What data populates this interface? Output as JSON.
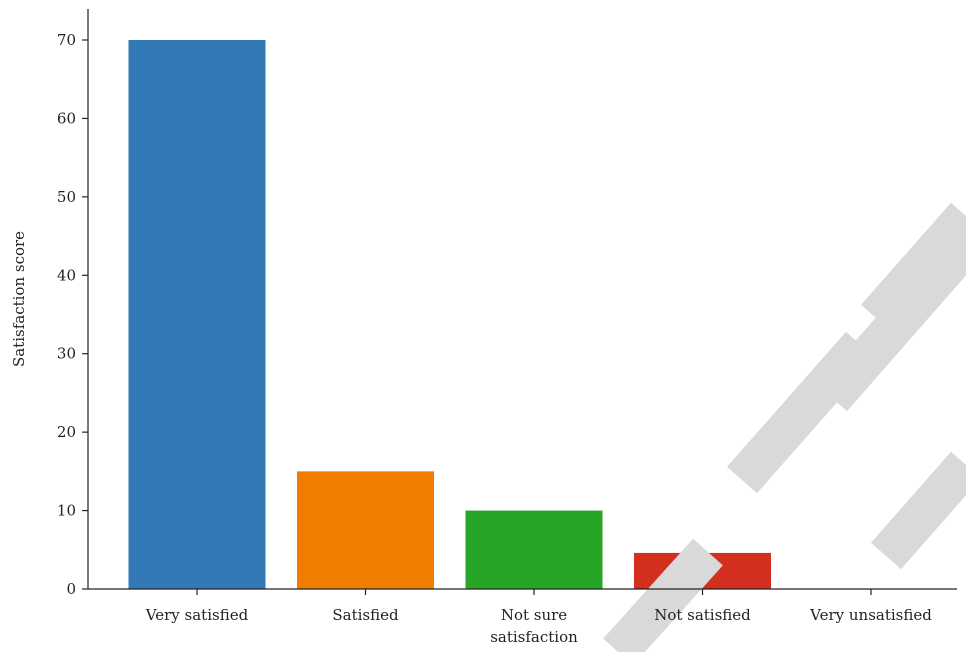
{
  "chart_data": {
    "type": "bar",
    "ylabel": "Satisfaction score",
    "xlabel": "",
    "categories": [
      [
        "Very satisfied"
      ],
      [
        "Satisfied"
      ],
      [
        "Not sure",
        "satisfaction"
      ],
      [
        "Not satisfied"
      ],
      [
        "Very unsatisfied"
      ]
    ],
    "values": [
      70,
      15,
      10,
      4.6,
      0
    ],
    "colors": [
      "#3379b5",
      "#f17d00",
      "#27a527",
      "#d32f1e",
      "#9467bd"
    ],
    "ylim": [
      0,
      75
    ],
    "yticks": [
      0,
      10,
      20,
      30,
      40,
      50,
      60,
      70
    ],
    "grid": false
  },
  "watermark": {
    "text": "RETRACTED",
    "color": "#d9d9d9"
  }
}
